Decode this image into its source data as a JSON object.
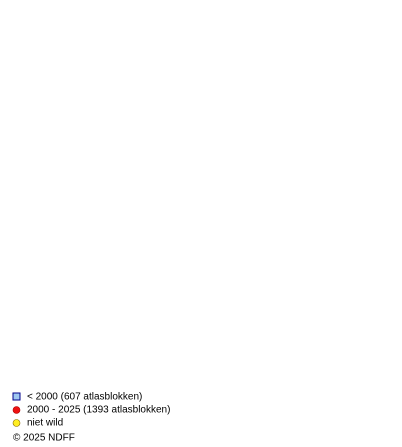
{
  "legend": [
    {
      "label": "< 2000   (607 atlasblokken)"
    },
    {
      "label": "2000 - 2025 (1393 atlasblokken)"
    },
    {
      "label": "niet wild"
    }
  ],
  "copyright": "© 2025 NDFF"
}
